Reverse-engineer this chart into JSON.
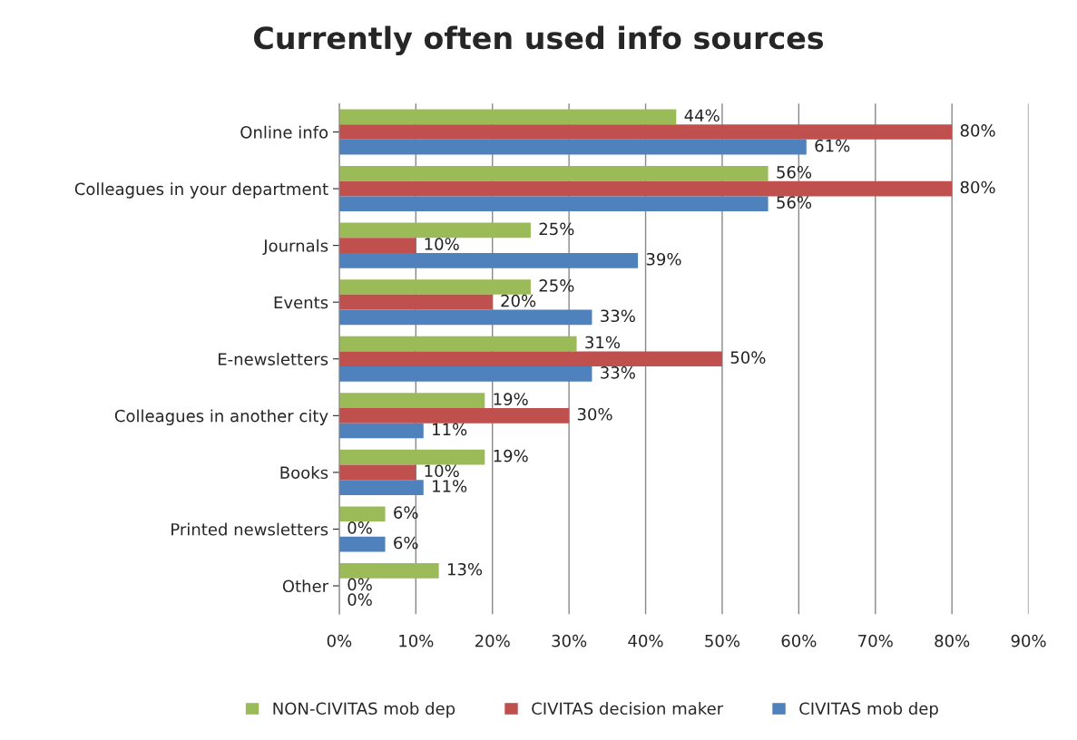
{
  "chart_data": {
    "type": "bar",
    "orientation": "horizontal",
    "title": "Currently often used info sources",
    "categories": [
      "Online info",
      "Colleagues in your department",
      "Journals",
      "Events",
      "E-newsletters",
      "Colleagues in another city",
      "Books",
      "Printed newsletters",
      "Other"
    ],
    "series": [
      {
        "name": "NON-CIVITAS mob dep",
        "color": "#9bbb59",
        "values": [
          44,
          56,
          25,
          25,
          31,
          19,
          19,
          6,
          13
        ],
        "value_labels": [
          "44%",
          "56%",
          "25%",
          "25%",
          "31%",
          "19%",
          "19%",
          "6%",
          "13%"
        ]
      },
      {
        "name": "CIVITAS decision maker",
        "color": "#c0504d",
        "values": [
          80,
          80,
          10,
          20,
          50,
          30,
          10,
          0,
          0
        ],
        "value_labels": [
          "80%",
          "80%",
          "10%",
          "20%",
          "50%",
          "30%",
          "10%",
          "0%",
          "0%"
        ]
      },
      {
        "name": "CIVITAS mob dep",
        "color": "#4f81bd",
        "values": [
          61,
          56,
          39,
          33,
          33,
          11,
          11,
          6,
          0
        ],
        "value_labels": [
          "61%",
          "56%",
          "39%",
          "33%",
          "33%",
          "11%",
          "11%",
          "6%",
          "0%"
        ]
      }
    ],
    "xlim": [
      0,
      90
    ],
    "xticks": [
      {
        "value": 0,
        "label": "0%"
      },
      {
        "value": 10,
        "label": "10%"
      },
      {
        "value": 20,
        "label": "20%"
      },
      {
        "value": 30,
        "label": "30%"
      },
      {
        "value": 40,
        "label": "40%"
      },
      {
        "value": 50,
        "label": "50%"
      },
      {
        "value": 60,
        "label": "60%"
      },
      {
        "value": 70,
        "label": "70%"
      },
      {
        "value": 80,
        "label": "80%"
      },
      {
        "value": 90,
        "label": "90%"
      }
    ],
    "grid": "x",
    "legend": "bottom"
  }
}
